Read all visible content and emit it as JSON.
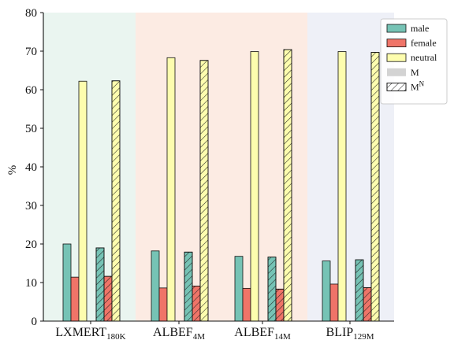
{
  "chart_data": {
    "type": "bar",
    "ylabel": "%",
    "ylim": [
      0,
      80
    ],
    "yticks": [
      0,
      10,
      20,
      30,
      40,
      50,
      60,
      70,
      80
    ],
    "grid": false,
    "legend_placement": "top-right",
    "categories": [
      {
        "base": "LXMERT",
        "sub": "180K",
        "band_color": "#eaf5f0"
      },
      {
        "base": "ALBEF",
        "sub": "4M",
        "band_color": "#fcebe3"
      },
      {
        "base": "ALBEF",
        "sub": "14M",
        "band_color": "#fcebe3"
      },
      {
        "base": "BLIP",
        "sub": "129M",
        "band_color": "#eef0f7"
      }
    ],
    "series": [
      {
        "name": "male",
        "color": "#76c3b5",
        "M": [
          20.0,
          18.2,
          16.8,
          15.6
        ],
        "MN": [
          19.0,
          17.9,
          16.6,
          15.9
        ]
      },
      {
        "name": "female",
        "color": "#ef7468",
        "M": [
          11.4,
          8.6,
          8.5,
          9.6
        ],
        "MN": [
          11.6,
          9.1,
          8.3,
          8.7
        ]
      },
      {
        "name": "neutral",
        "color": "#fdfdae",
        "M": [
          62.2,
          68.3,
          69.9,
          69.9
        ],
        "MN": [
          62.3,
          67.6,
          70.4,
          69.7
        ]
      }
    ],
    "variants": [
      {
        "name": "M",
        "hatched": false
      },
      {
        "name": "M",
        "sup": "N",
        "hatched": true
      }
    ]
  }
}
